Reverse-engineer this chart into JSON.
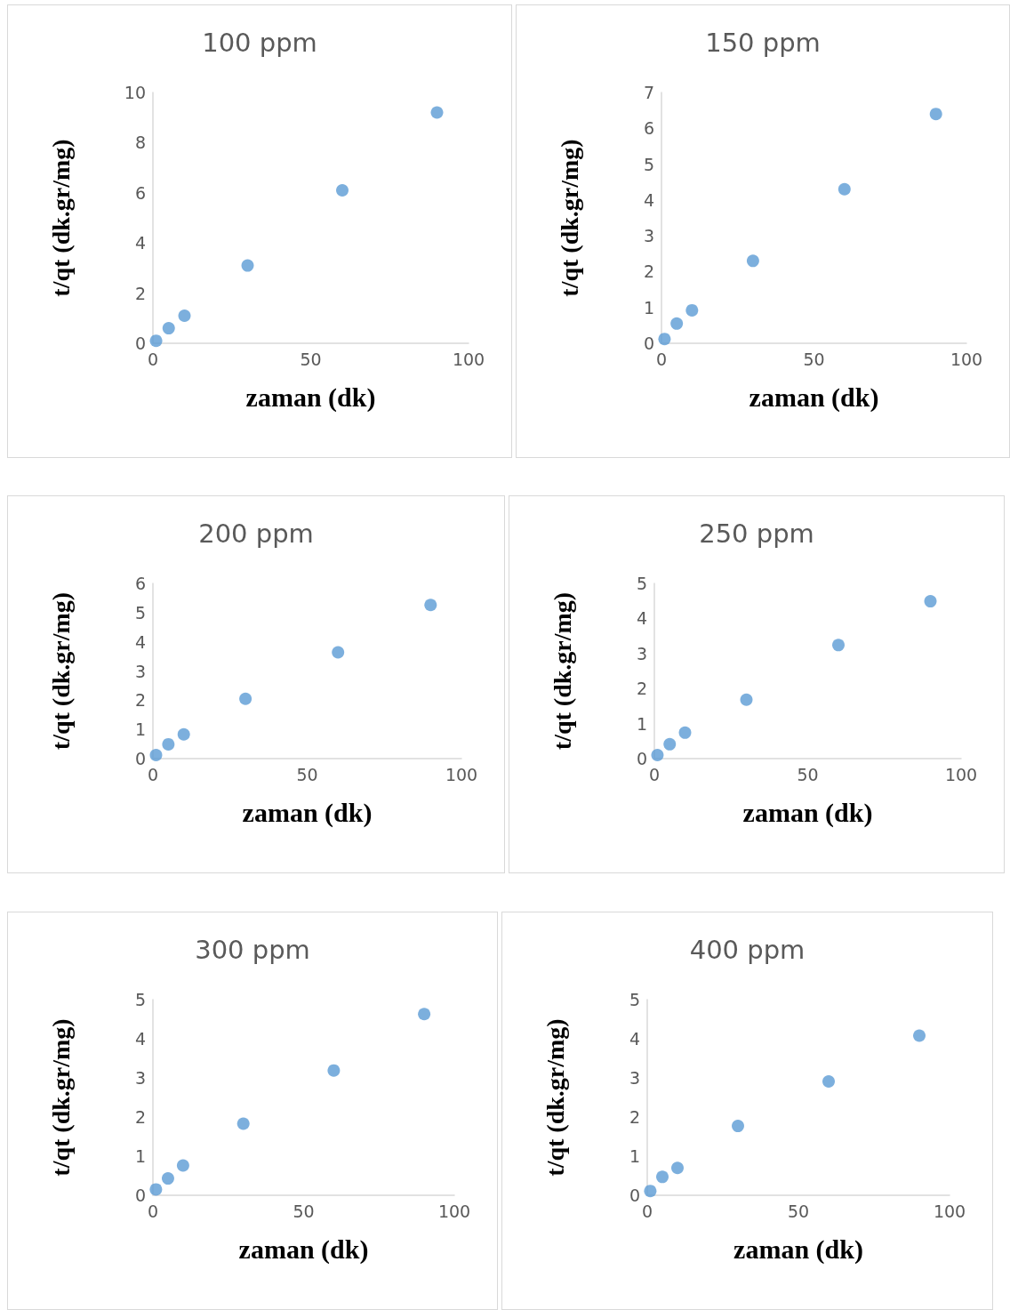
{
  "chart_data": [
    {
      "type": "scatter",
      "title": "100 ppm",
      "xlabel": "zaman (dk)",
      "ylabel": "t/qt (dk.gr/mg)",
      "x": [
        1,
        5,
        10,
        30,
        60,
        90
      ],
      "marker": "circle",
      "series": [
        {
          "color": "#5b9bd5",
          "values": [
            0.1,
            0.6,
            1.1,
            3.1,
            6.1,
            9.2
          ]
        }
      ],
      "xlim": [
        0,
        100
      ],
      "xticks": [
        0,
        50,
        100
      ],
      "ylim": [
        0,
        10
      ],
      "yticks": [
        0,
        2,
        4,
        6,
        8,
        10
      ]
    },
    {
      "type": "scatter",
      "title": "150 ppm",
      "xlabel": "zaman (dk)",
      "ylabel": "t/qt (dk.gr/mg)",
      "x": [
        1,
        5,
        10,
        30,
        60,
        90
      ],
      "marker": "circle",
      "series": [
        {
          "color": "#5b9bd5",
          "values": [
            0.12,
            0.55,
            0.92,
            2.3,
            4.3,
            6.4
          ]
        }
      ],
      "xlim": [
        0,
        100
      ],
      "xticks": [
        0,
        50,
        100
      ],
      "ylim": [
        0,
        7
      ],
      "yticks": [
        0,
        1,
        2,
        3,
        4,
        5,
        6,
        7
      ]
    },
    {
      "type": "scatter",
      "title": "200 ppm",
      "xlabel": "zaman (dk)",
      "ylabel": "t/qt (dk.gr/mg)",
      "x": [
        1,
        5,
        10,
        30,
        60,
        90
      ],
      "marker": "circle",
      "series": [
        {
          "color": "#5b9bd5",
          "values": [
            0.12,
            0.49,
            0.83,
            2.05,
            3.64,
            5.26
          ]
        }
      ],
      "xlim": [
        0,
        100
      ],
      "xticks": [
        0,
        50,
        100
      ],
      "ylim": [
        0,
        6
      ],
      "yticks": [
        0,
        1,
        2,
        3,
        4,
        5,
        6
      ]
    },
    {
      "type": "scatter",
      "title": "250 ppm",
      "xlabel": "zaman (dk)",
      "ylabel": "t/qt (dk.gr/mg)",
      "x": [
        1,
        5,
        10,
        30,
        60,
        90
      ],
      "marker": "circle",
      "series": [
        {
          "color": "#5b9bd5",
          "values": [
            0.1,
            0.41,
            0.74,
            1.68,
            3.24,
            4.49
          ]
        }
      ],
      "xlim": [
        0,
        100
      ],
      "xticks": [
        0,
        50,
        100
      ],
      "ylim": [
        0,
        5
      ],
      "yticks": [
        0,
        1,
        2,
        3,
        4,
        5
      ]
    },
    {
      "type": "scatter",
      "title": "300 ppm",
      "xlabel": "zaman (dk)",
      "ylabel": "t/qt (dk.gr/mg)",
      "x": [
        1,
        5,
        10,
        30,
        60,
        90
      ],
      "marker": "circle",
      "series": [
        {
          "color": "#5b9bd5",
          "values": [
            0.15,
            0.43,
            0.76,
            1.83,
            3.19,
            4.63
          ]
        }
      ],
      "xlim": [
        0,
        100
      ],
      "xticks": [
        0,
        50,
        100
      ],
      "ylim": [
        0,
        5
      ],
      "yticks": [
        0,
        1,
        2,
        3,
        4,
        5
      ]
    },
    {
      "type": "scatter",
      "title": "400 ppm",
      "xlabel": "zaman (dk)",
      "ylabel": "t/qt (dk.gr/mg)",
      "x": [
        1,
        5,
        10,
        30,
        60,
        90
      ],
      "marker": "circle",
      "series": [
        {
          "color": "#5b9bd5",
          "values": [
            0.11,
            0.47,
            0.7,
            1.77,
            2.91,
            4.08
          ]
        }
      ],
      "xlim": [
        0,
        100
      ],
      "xticks": [
        0,
        50,
        100
      ],
      "ylim": [
        0,
        5
      ],
      "yticks": [
        0,
        1,
        2,
        3,
        4,
        5
      ]
    }
  ]
}
